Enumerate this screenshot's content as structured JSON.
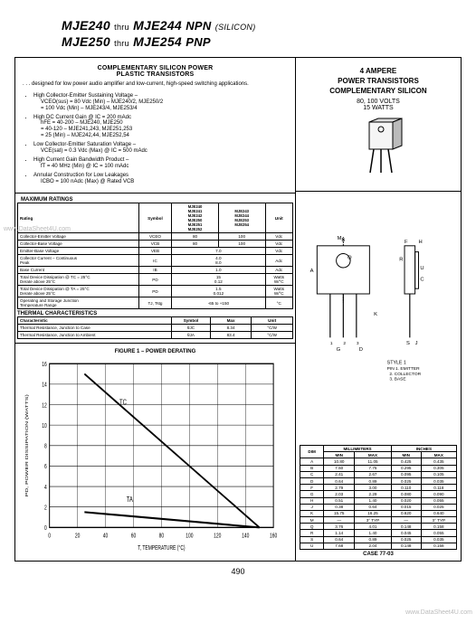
{
  "header": {
    "line1_a": "MJE240",
    "line1_thru": "thru",
    "line1_b": "MJE244",
    "line1_type": "NPN",
    "line1_sil": "(SILICON)",
    "line2_a": "MJE250",
    "line2_thru": "thru",
    "line2_b": "MJE254",
    "line2_type": "PNP"
  },
  "desc": {
    "title1": "COMPLEMENTARY SILICON POWER",
    "title2": "PLASTIC TRANSISTORS",
    "intro": ". . . designed for low power audio amplifier and low-current, high-speed switching applications.",
    "b1": "High Collector-Emitter Sustaining Voltage –",
    "b1a": "VCEO(sus) = 80 Vdc (Min) – MJE240/2, MJE250/2",
    "b1b": "= 100 Vdc (Min) – MJE243/4, MJE253/4",
    "b2": "High DC Current Gain @ IC = 200 mAdc",
    "b2a": "hFE = 40-200 – MJE240, MJE250",
    "b2b": "= 40-120 – MJE241,243, MJE251,253",
    "b2c": "= 25 (Min) – MJE242,44, MJE252,54",
    "b3": "Low Collector-Emitter Saturation Voltage –",
    "b3a": "VCE(sat) = 0.3 Vdc (Max) @ IC = 500 mAdc",
    "b4": "High Current Gain Bandwidth Product –",
    "b4a": "fT = 40 MHz (Min) @ IC = 100 mAdc",
    "b5": "Annular Construction for Low Leakages",
    "b5a": "ICBO = 100 nAdc (Max) @ Rated VCB"
  },
  "right_top": {
    "amp": "4 AMPERE",
    "l1": "POWER TRANSISTORS",
    "l2": "COMPLEMENTARY SILICON",
    "volts": "80, 100 VOLTS",
    "watts": "15 WATTS"
  },
  "max": {
    "title": "MAXIMUM RATINGS",
    "hdr_rating": "Rating",
    "hdr_symbol": "Symbol",
    "hdr_g1": "MJE240\nMJE241\nMJE242\nMJE250\nMJE251\nMJE252",
    "hdr_g2": "MJE243\nMJE244\nMJE253\nMJE254",
    "hdr_unit": "Unit",
    "rows": [
      {
        "r": "Collector-Emitter Voltage",
        "s": "VCEO",
        "v1": "80",
        "v2": "100",
        "u": "Vdc"
      },
      {
        "r": "Collector-Base Voltage",
        "s": "VCB",
        "v1": "80",
        "v2": "100",
        "u": "Vdc"
      },
      {
        "r": "Emitter-Base Voltage",
        "s": "VEB",
        "v12": "7.0",
        "u": "Vdc"
      },
      {
        "r": "Collector Current – Continuous\n  Peak",
        "s": "IC",
        "v12": "4.0\n8.0",
        "u": "Adc"
      },
      {
        "r": "Base Current",
        "s": "IB",
        "v12": "1.0",
        "u": "Adc"
      },
      {
        "r": "Total Device Dissipation @ TC = 25°C\n  Derate above 25°C",
        "s": "PD",
        "v12": "15\n0.12",
        "u": "Watts\nW/°C"
      },
      {
        "r": "Total Device Dissipation @ TA = 25°C\n  Derate above 25°C",
        "s": "PD",
        "v12": "1.5\n0.012",
        "u": "Watts\nW/°C"
      },
      {
        "r": "Operating and Storage Junction\n  Temperature Range",
        "s": "TJ, Tstg",
        "v12": "-65 to +150",
        "u": "°C"
      }
    ]
  },
  "therm": {
    "title": "THERMAL CHARACTERISTICS",
    "hdr_c": "Characteristic",
    "hdr_s": "Symbol",
    "hdr_m": "Max",
    "hdr_u": "Unit",
    "rows": [
      {
        "c": "Thermal Resistance, Junction to Case",
        "s": "θJC",
        "m": "8.34",
        "u": "°C/W"
      },
      {
        "c": "Thermal Resistance, Junction to Ambient",
        "s": "θJA",
        "m": "83.4",
        "u": "°C/W"
      }
    ]
  },
  "chart": {
    "caption": "FIGURE 1 – POWER DERATING",
    "xlabel": "T, TEMPERATURE (°C)",
    "ylabel": "PD, POWER DISSIPATION (WATTS)",
    "xlim": [
      0,
      160
    ],
    "ylim": [
      0,
      16
    ],
    "xticks": [
      0,
      20,
      40,
      60,
      80,
      100,
      120,
      140,
      160
    ],
    "yticks": [
      0,
      2,
      4,
      6,
      8,
      10,
      12,
      14,
      16
    ],
    "line1": {
      "label": "TC",
      "pts": [
        [
          25,
          15
        ],
        [
          150,
          0
        ]
      ]
    },
    "line2": {
      "label": "TA",
      "pts": [
        [
          25,
          1.5
        ],
        [
          150,
          0
        ]
      ]
    },
    "colors": {
      "bg": "#ffffff",
      "grid": "#000000",
      "line": "#000000",
      "text": "#000000"
    }
  },
  "pkg": {
    "style": "STYLE 1",
    "pins": "PIN 1. EMITTER\n  2. COLLECTOR\n  3. BASE",
    "case": "CASE 77-03",
    "dim_hdr": {
      "d": "DIM",
      "mm": "MILLIMETERS",
      "in": "INCHES",
      "min": "MIN",
      "max": "MAX"
    },
    "dims": [
      {
        "d": "A",
        "mn": "10.80",
        "mx": "11.05",
        "imn": "0.425",
        "imx": "0.435"
      },
      {
        "d": "B",
        "mn": "7.50",
        "mx": "7.75",
        "imn": "0.295",
        "imx": "0.305"
      },
      {
        "d": "C",
        "mn": "2.41",
        "mx": "2.67",
        "imn": "0.095",
        "imx": "0.105"
      },
      {
        "d": "D",
        "mn": "0.64",
        "mx": "0.89",
        "imn": "0.025",
        "imx": "0.035"
      },
      {
        "d": "F",
        "mn": "2.79",
        "mx": "3.00",
        "imn": "0.110",
        "imx": "0.118"
      },
      {
        "d": "G",
        "mn": "2.03",
        "mx": "2.29",
        "imn": "0.080",
        "imx": "0.090"
      },
      {
        "d": "H",
        "mn": "0.51",
        "mx": "1.40",
        "imn": "0.020",
        "imx": "0.055"
      },
      {
        "d": "J",
        "mn": "0.38",
        "mx": "0.64",
        "imn": "0.015",
        "imx": "0.025"
      },
      {
        "d": "K",
        "mn": "15.75",
        "mx": "16.25",
        "imn": "0.620",
        "imx": "0.640"
      },
      {
        "d": "M",
        "mn": "—",
        "mx": "3° TYP",
        "imn": "—",
        "imx": "3° TYP"
      },
      {
        "d": "Q",
        "mn": "3.76",
        "mx": "4.01",
        "imn": "0.148",
        "imx": "0.158"
      },
      {
        "d": "R",
        "mn": "1.14",
        "mx": "1.40",
        "imn": "0.045",
        "imx": "0.055"
      },
      {
        "d": "S",
        "mn": "0.64",
        "mx": "0.89",
        "imn": "0.025",
        "imx": "0.035"
      },
      {
        "d": "U",
        "mn": "7.68",
        "mx": "2.04",
        "imn": "0.148",
        "imx": "0.158"
      }
    ]
  },
  "pgnum": "490",
  "wm": "www.DataSheet4U.com"
}
